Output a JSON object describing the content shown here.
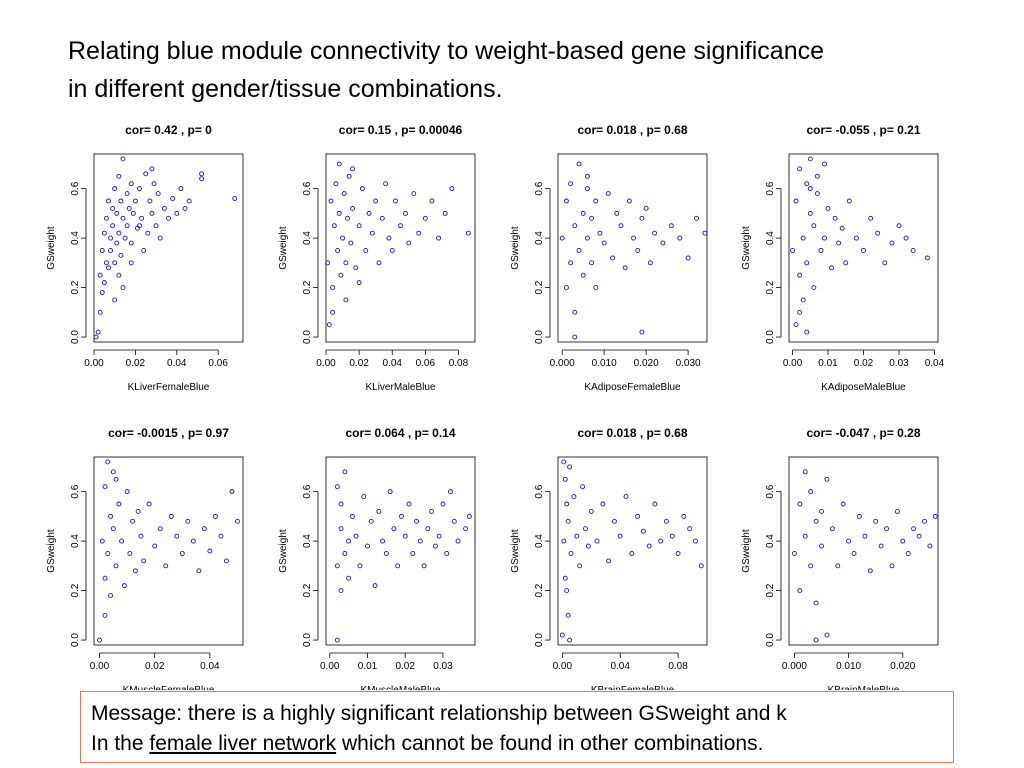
{
  "slide": {
    "title_line1": "Relating blue module connectivity to weight-based gene significance",
    "title_line2": "in different gender/tissue combinations."
  },
  "message": {
    "line1": "Message: there is a highly significant relationship between GSweight and k",
    "line2_prefix": "In the",
    "line2_link": "female liver network",
    "line2_suffix": "which cannot be found in other combinations."
  },
  "colors": {
    "points": "#1414e6",
    "frame": "#000000",
    "box_border": "#e8765a"
  },
  "chart_data": [
    {
      "type": "scatter",
      "title": "cor= 0.42 , p= 0",
      "xlabel": "KLiverFemaleBlue",
      "ylabel": "GSweight",
      "xticks": [
        "0.00",
        "0.02",
        "0.04",
        "0.06"
      ],
      "xtick_values": [
        0,
        0.02,
        0.04,
        0.06
      ],
      "xlim": [
        0,
        0.072
      ],
      "yticks": [
        "0.0",
        "0.2",
        "0.4",
        "0.6"
      ],
      "ytick_values": [
        0,
        0.2,
        0.4,
        0.6
      ],
      "ylim": [
        -0.02,
        0.74
      ],
      "x": [
        0.001,
        0.002,
        0.003,
        0.003,
        0.004,
        0.004,
        0.005,
        0.005,
        0.006,
        0.006,
        0.007,
        0.007,
        0.008,
        0.008,
        0.009,
        0.009,
        0.01,
        0.01,
        0.011,
        0.011,
        0.012,
        0.012,
        0.013,
        0.013,
        0.014,
        0.014,
        0.015,
        0.016,
        0.016,
        0.017,
        0.018,
        0.018,
        0.019,
        0.02,
        0.021,
        0.022,
        0.023,
        0.024,
        0.025,
        0.026,
        0.027,
        0.028,
        0.029,
        0.03,
        0.031,
        0.032,
        0.034,
        0.036,
        0.038,
        0.04,
        0.042,
        0.044,
        0.046,
        0.052,
        0.052,
        0.068,
        0.01,
        0.014,
        0.012,
        0.018,
        0.022,
        0.028
      ],
      "y": [
        0.0,
        0.02,
        0.1,
        0.25,
        0.18,
        0.35,
        0.22,
        0.42,
        0.3,
        0.48,
        0.28,
        0.55,
        0.35,
        0.4,
        0.45,
        0.52,
        0.3,
        0.6,
        0.38,
        0.5,
        0.42,
        0.65,
        0.33,
        0.55,
        0.48,
        0.72,
        0.4,
        0.58,
        0.45,
        0.52,
        0.62,
        0.38,
        0.5,
        0.55,
        0.44,
        0.6,
        0.48,
        0.35,
        0.66,
        0.42,
        0.55,
        0.5,
        0.62,
        0.45,
        0.58,
        0.4,
        0.52,
        0.48,
        0.56,
        0.5,
        0.6,
        0.52,
        0.55,
        0.66,
        0.64,
        0.56,
        0.15,
        0.2,
        0.25,
        0.3,
        0.45,
        0.68
      ]
    },
    {
      "type": "scatter",
      "title": "cor= 0.15 , p= 0.00046",
      "xlabel": "KLiverMaleBlue",
      "ylabel": "GSweight",
      "xticks": [
        "0.00",
        "0.02",
        "0.04",
        "0.06",
        "0.08"
      ],
      "xtick_values": [
        0,
        0.02,
        0.04,
        0.06,
        0.08
      ],
      "xlim": [
        0,
        0.09
      ],
      "yticks": [
        "0.0",
        "0.2",
        "0.4",
        "0.6"
      ],
      "ytick_values": [
        0,
        0.2,
        0.4,
        0.6
      ],
      "ylim": [
        -0.02,
        0.74
      ],
      "x": [
        0.001,
        0.002,
        0.003,
        0.004,
        0.005,
        0.006,
        0.007,
        0.008,
        0.009,
        0.01,
        0.011,
        0.012,
        0.013,
        0.014,
        0.015,
        0.016,
        0.018,
        0.02,
        0.022,
        0.024,
        0.026,
        0.028,
        0.03,
        0.032,
        0.034,
        0.036,
        0.038,
        0.04,
        0.042,
        0.045,
        0.048,
        0.05,
        0.053,
        0.056,
        0.06,
        0.064,
        0.068,
        0.072,
        0.076,
        0.086,
        0.004,
        0.008,
        0.012,
        0.016,
        0.02
      ],
      "y": [
        0.3,
        0.05,
        0.55,
        0.2,
        0.45,
        0.62,
        0.35,
        0.5,
        0.25,
        0.4,
        0.58,
        0.3,
        0.48,
        0.65,
        0.38,
        0.52,
        0.28,
        0.45,
        0.6,
        0.35,
        0.5,
        0.42,
        0.55,
        0.3,
        0.48,
        0.62,
        0.4,
        0.35,
        0.55,
        0.45,
        0.5,
        0.38,
        0.58,
        0.42,
        0.48,
        0.55,
        0.4,
        0.5,
        0.6,
        0.42,
        0.1,
        0.7,
        0.15,
        0.68,
        0.22
      ]
    },
    {
      "type": "scatter",
      "title": "cor= 0.018 , p= 0.68",
      "xlabel": "KAdiposeFemaleBlue",
      "ylabel": "GSweight",
      "xticks": [
        "0.000",
        "0.010",
        "0.020",
        "0.030"
      ],
      "xtick_values": [
        0,
        0.01,
        0.02,
        0.03
      ],
      "xlim": [
        -0.001,
        0.0345
      ],
      "yticks": [
        "0.0",
        "0.2",
        "0.4",
        "0.6"
      ],
      "ytick_values": [
        0,
        0.2,
        0.4,
        0.6
      ],
      "ylim": [
        -0.02,
        0.74
      ],
      "x": [
        0.0,
        0.001,
        0.001,
        0.002,
        0.002,
        0.003,
        0.003,
        0.004,
        0.004,
        0.005,
        0.005,
        0.006,
        0.006,
        0.007,
        0.007,
        0.008,
        0.008,
        0.009,
        0.01,
        0.011,
        0.012,
        0.013,
        0.014,
        0.015,
        0.016,
        0.017,
        0.018,
        0.019,
        0.02,
        0.021,
        0.022,
        0.024,
        0.026,
        0.028,
        0.03,
        0.032,
        0.034,
        0.019,
        0.003,
        0.006
      ],
      "y": [
        0.4,
        0.2,
        0.55,
        0.3,
        0.62,
        0.1,
        0.45,
        0.35,
        0.7,
        0.25,
        0.5,
        0.4,
        0.6,
        0.3,
        0.48,
        0.55,
        0.2,
        0.42,
        0.38,
        0.58,
        0.32,
        0.5,
        0.45,
        0.28,
        0.55,
        0.4,
        0.35,
        0.48,
        0.52,
        0.3,
        0.42,
        0.38,
        0.45,
        0.4,
        0.32,
        0.48,
        0.42,
        0.02,
        0.0,
        0.65
      ]
    },
    {
      "type": "scatter",
      "title": "cor= -0.055 , p= 0.21",
      "xlabel": "KAdiposeMaleBlue",
      "ylabel": "GSweight",
      "xticks": [
        "0.00",
        "0.01",
        "0.02",
        "0.03",
        "0.04"
      ],
      "xtick_values": [
        0,
        0.01,
        0.02,
        0.03,
        0.04
      ],
      "xlim": [
        -0.001,
        0.041
      ],
      "yticks": [
        "0.0",
        "0.2",
        "0.4",
        "0.6"
      ],
      "ytick_values": [
        0,
        0.2,
        0.4,
        0.6
      ],
      "ylim": [
        -0.02,
        0.74
      ],
      "x": [
        0.0,
        0.001,
        0.001,
        0.002,
        0.002,
        0.003,
        0.003,
        0.004,
        0.004,
        0.005,
        0.005,
        0.006,
        0.006,
        0.007,
        0.008,
        0.009,
        0.01,
        0.011,
        0.012,
        0.013,
        0.014,
        0.015,
        0.016,
        0.018,
        0.02,
        0.022,
        0.024,
        0.026,
        0.028,
        0.03,
        0.032,
        0.034,
        0.038,
        0.004,
        0.002,
        0.007,
        0.005,
        0.009
      ],
      "y": [
        0.35,
        0.05,
        0.55,
        0.25,
        0.68,
        0.4,
        0.15,
        0.62,
        0.3,
        0.5,
        0.72,
        0.2,
        0.45,
        0.58,
        0.35,
        0.4,
        0.52,
        0.28,
        0.48,
        0.38,
        0.44,
        0.3,
        0.55,
        0.4,
        0.35,
        0.48,
        0.42,
        0.3,
        0.38,
        0.45,
        0.4,
        0.35,
        0.32,
        0.02,
        0.1,
        0.65,
        0.6,
        0.7
      ]
    },
    {
      "type": "scatter",
      "title": "cor= -0.0015 , p= 0.97",
      "xlabel": "KMuscleFemaleBlue",
      "ylabel": "GSweight",
      "xticks": [
        "0.00",
        "0.02",
        "0.04"
      ],
      "xtick_values": [
        0,
        0.02,
        0.04
      ],
      "xlim": [
        -0.002,
        0.052
      ],
      "yticks": [
        "0.0",
        "0.2",
        "0.4",
        "0.6"
      ],
      "ytick_values": [
        0,
        0.2,
        0.4,
        0.6
      ],
      "ylim": [
        -0.02,
        0.74
      ],
      "x": [
        0.0,
        0.001,
        0.002,
        0.002,
        0.003,
        0.003,
        0.004,
        0.004,
        0.005,
        0.005,
        0.006,
        0.007,
        0.008,
        0.009,
        0.01,
        0.011,
        0.012,
        0.013,
        0.014,
        0.015,
        0.016,
        0.018,
        0.02,
        0.022,
        0.024,
        0.026,
        0.028,
        0.03,
        0.032,
        0.034,
        0.036,
        0.038,
        0.04,
        0.042,
        0.044,
        0.046,
        0.048,
        0.05,
        0.002,
        0.006
      ],
      "y": [
        0.0,
        0.4,
        0.62,
        0.25,
        0.72,
        0.35,
        0.5,
        0.18,
        0.45,
        0.68,
        0.3,
        0.55,
        0.4,
        0.22,
        0.6,
        0.35,
        0.48,
        0.28,
        0.52,
        0.42,
        0.32,
        0.55,
        0.38,
        0.45,
        0.3,
        0.5,
        0.42,
        0.35,
        0.48,
        0.4,
        0.28,
        0.45,
        0.36,
        0.5,
        0.42,
        0.32,
        0.6,
        0.48,
        0.1,
        0.65
      ]
    },
    {
      "type": "scatter",
      "title": "cor= 0.064 , p= 0.14",
      "xlabel": "KMuscleMaleBlue",
      "ylabel": "GSweight",
      "xticks": [
        "0.00",
        "0.01",
        "0.02",
        "0.03"
      ],
      "xtick_values": [
        0,
        0.01,
        0.02,
        0.03
      ],
      "xlim": [
        -0.001,
        0.0385
      ],
      "yticks": [
        "0.0",
        "0.2",
        "0.4",
        "0.6"
      ],
      "ytick_values": [
        0,
        0.2,
        0.4,
        0.6
      ],
      "ylim": [
        -0.02,
        0.74
      ],
      "x": [
        0.002,
        0.002,
        0.002,
        0.003,
        0.003,
        0.003,
        0.004,
        0.004,
        0.005,
        0.005,
        0.006,
        0.007,
        0.008,
        0.009,
        0.01,
        0.011,
        0.012,
        0.013,
        0.014,
        0.015,
        0.016,
        0.017,
        0.018,
        0.019,
        0.02,
        0.021,
        0.022,
        0.023,
        0.024,
        0.025,
        0.026,
        0.027,
        0.028,
        0.029,
        0.03,
        0.031,
        0.032,
        0.033,
        0.034,
        0.036,
        0.037
      ],
      "y": [
        0.0,
        0.62,
        0.3,
        0.45,
        0.2,
        0.55,
        0.35,
        0.68,
        0.4,
        0.25,
        0.5,
        0.42,
        0.3,
        0.58,
        0.38,
        0.48,
        0.22,
        0.52,
        0.4,
        0.35,
        0.6,
        0.45,
        0.3,
        0.5,
        0.42,
        0.55,
        0.35,
        0.48,
        0.4,
        0.3,
        0.45,
        0.52,
        0.38,
        0.42,
        0.55,
        0.35,
        0.6,
        0.48,
        0.4,
        0.45,
        0.5
      ]
    },
    {
      "type": "scatter",
      "title": "cor= 0.018 , p= 0.68",
      "xlabel": "KBrainFemaleBlue",
      "ylabel": "GSweight",
      "xticks": [
        "0.00",
        "0.04",
        "0.08"
      ],
      "xtick_values": [
        0,
        0.04,
        0.08
      ],
      "xlim": [
        -0.003,
        0.1
      ],
      "yticks": [
        "0.0",
        "0.2",
        "0.4",
        "0.6"
      ],
      "ytick_values": [
        0,
        0.2,
        0.4,
        0.6
      ],
      "ylim": [
        -0.02,
        0.74
      ],
      "x": [
        0.0,
        0.001,
        0.002,
        0.002,
        0.003,
        0.004,
        0.004,
        0.005,
        0.006,
        0.008,
        0.01,
        0.012,
        0.014,
        0.016,
        0.018,
        0.02,
        0.024,
        0.028,
        0.032,
        0.036,
        0.04,
        0.044,
        0.048,
        0.052,
        0.056,
        0.06,
        0.064,
        0.068,
        0.072,
        0.076,
        0.08,
        0.084,
        0.088,
        0.092,
        0.096,
        0.003,
        0.005,
        0.001
      ],
      "y": [
        0.02,
        0.4,
        0.65,
        0.25,
        0.55,
        0.1,
        0.48,
        0.7,
        0.35,
        0.58,
        0.42,
        0.3,
        0.62,
        0.45,
        0.38,
        0.52,
        0.4,
        0.55,
        0.32,
        0.48,
        0.42,
        0.58,
        0.35,
        0.5,
        0.44,
        0.38,
        0.55,
        0.4,
        0.48,
        0.42,
        0.35,
        0.5,
        0.45,
        0.4,
        0.3,
        0.2,
        0.0,
        0.72
      ]
    },
    {
      "type": "scatter",
      "title": "cor= -0.047 , p= 0.28",
      "xlabel": "KBrainMaleBlue",
      "ylabel": "GSweight",
      "xticks": [
        "0.000",
        "0.010",
        "0.020"
      ],
      "xtick_values": [
        0,
        0.01,
        0.02
      ],
      "xlim": [
        -0.001,
        0.0265
      ],
      "yticks": [
        "0.0",
        "0.2",
        "0.4",
        "0.6"
      ],
      "ytick_values": [
        0,
        0.2,
        0.4,
        0.6
      ],
      "ylim": [
        -0.02,
        0.74
      ],
      "x": [
        0.0,
        0.001,
        0.001,
        0.002,
        0.002,
        0.003,
        0.003,
        0.004,
        0.004,
        0.005,
        0.005,
        0.006,
        0.007,
        0.008,
        0.009,
        0.01,
        0.011,
        0.012,
        0.013,
        0.014,
        0.015,
        0.016,
        0.017,
        0.018,
        0.019,
        0.02,
        0.021,
        0.022,
        0.023,
        0.024,
        0.025,
        0.026,
        0.004,
        0.006
      ],
      "y": [
        0.35,
        0.55,
        0.2,
        0.68,
        0.42,
        0.3,
        0.6,
        0.48,
        0.15,
        0.52,
        0.38,
        0.65,
        0.45,
        0.3,
        0.55,
        0.4,
        0.35,
        0.5,
        0.42,
        0.28,
        0.48,
        0.38,
        0.45,
        0.3,
        0.52,
        0.4,
        0.35,
        0.45,
        0.42,
        0.48,
        0.38,
        0.5,
        0.0,
        0.02
      ]
    }
  ]
}
